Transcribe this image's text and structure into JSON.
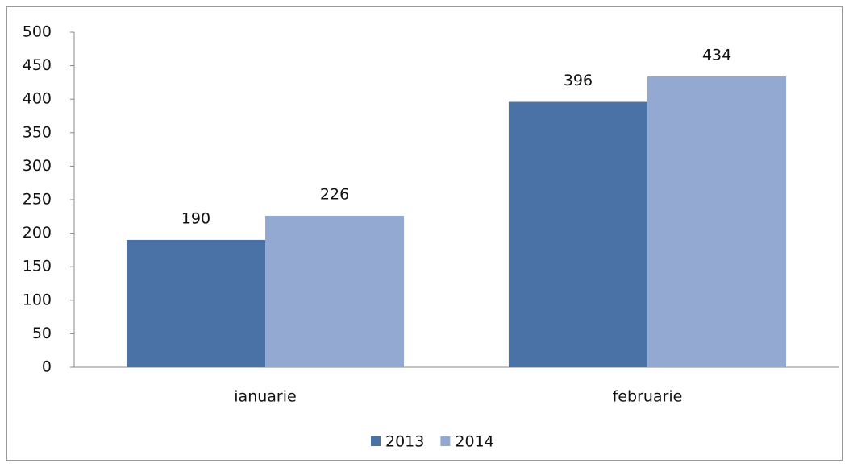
{
  "chart_data": {
    "type": "bar",
    "categories": [
      "ianuarie",
      "februarie"
    ],
    "series": [
      {
        "name": "2013",
        "color": "#4a72a6",
        "values": [
          190,
          396
        ]
      },
      {
        "name": "2014",
        "color": "#94a9d2",
        "values": [
          226,
          434
        ]
      }
    ],
    "ylim": [
      0,
      500
    ],
    "yticks": [
      0,
      50,
      100,
      150,
      200,
      250,
      300,
      350,
      400,
      450,
      500
    ],
    "grid": false,
    "legend": "bottom"
  }
}
